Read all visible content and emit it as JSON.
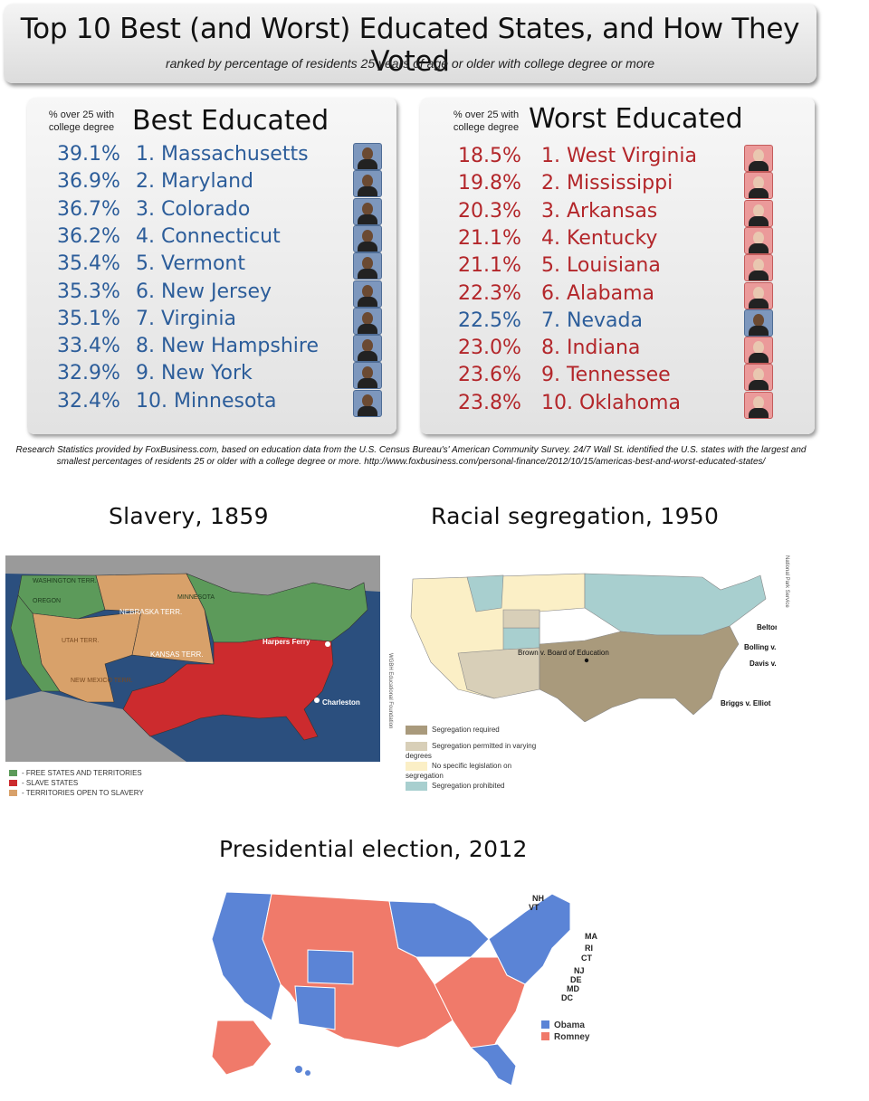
{
  "header": {
    "title": "Top 10 Best (and Worst) Educated States, and How They Voted",
    "subtitle": "ranked by percentage of residents 25 years of age or older with college degree or more"
  },
  "best": {
    "col_header_line1": "% over 25 with",
    "col_header_line2": "college degree",
    "heading": "Best Educated",
    "rows": [
      {
        "pct": "39.1%",
        "state": "1. Massachusetts",
        "vote": "obama"
      },
      {
        "pct": "36.9%",
        "state": "2. Maryland",
        "vote": "obama"
      },
      {
        "pct": "36.7%",
        "state": "3. Colorado",
        "vote": "obama"
      },
      {
        "pct": "36.2%",
        "state": "4. Connecticut",
        "vote": "obama"
      },
      {
        "pct": "35.4%",
        "state": "5. Vermont",
        "vote": "obama"
      },
      {
        "pct": "35.3%",
        "state": "6. New Jersey",
        "vote": "obama"
      },
      {
        "pct": "35.1%",
        "state": "7. Virginia",
        "vote": "obama"
      },
      {
        "pct": "33.4%",
        "state": "8. New Hampshire",
        "vote": "obama"
      },
      {
        "pct": "32.9%",
        "state": "9. New York",
        "vote": "obama"
      },
      {
        "pct": "32.4%",
        "state": "10. Minnesota",
        "vote": "obama"
      }
    ]
  },
  "worst": {
    "col_header_line1": "% over 25 with",
    "col_header_line2": "college degree",
    "heading": "Worst Educated",
    "rows": [
      {
        "pct": "18.5%",
        "state": "1. West Virginia",
        "vote": "romney"
      },
      {
        "pct": "19.8%",
        "state": "2. Mississippi",
        "vote": "romney"
      },
      {
        "pct": "20.3%",
        "state": "3. Arkansas",
        "vote": "romney"
      },
      {
        "pct": "21.1%",
        "state": "4. Kentucky",
        "vote": "romney"
      },
      {
        "pct": "21.1%",
        "state": "5. Louisiana",
        "vote": "romney"
      },
      {
        "pct": "22.3%",
        "state": "6. Alabama",
        "vote": "romney"
      },
      {
        "pct": "22.5%",
        "state": "7. Nevada",
        "vote": "obama"
      },
      {
        "pct": "23.0%",
        "state": "8. Indiana",
        "vote": "romney"
      },
      {
        "pct": "23.6%",
        "state": "9. Tennessee",
        "vote": "romney"
      },
      {
        "pct": "23.8%",
        "state": "10. Oklahoma",
        "vote": "romney"
      }
    ]
  },
  "source": {
    "line1": "Research Statistics provided by FoxBusiness.com, based on education data from the U.S. Census Bureau's' American Community Survey. 24/7 Wall St. identified the U.S. states with the largest and",
    "line2": "smallest percentages of residents 25 or older with a college degree or more. http://www.foxbusiness.com/personal-finance/2012/10/15/americas-best-and-worst-educated-states/"
  },
  "slavery_map": {
    "title": "Slavery, 1859",
    "labels": {
      "nebraska": "NEBRASKA TERR.",
      "kansas": "KANSAS TERR.",
      "utah": "UTAH TERR.",
      "new_mexico": "NEW MEXICO TERR.",
      "washington": "WASHINGTON TERR.",
      "oregon": "OREGON",
      "minnesota": "MINNESOTA",
      "harpers_ferry": "Harpers Ferry",
      "charleston": "Charleston",
      "credit": "WGBH Educational Foundation"
    },
    "legend": [
      {
        "label": "- FREE STATES AND TERRITORIES",
        "color": "#5c9a5a"
      },
      {
        "label": "- SLAVE STATES",
        "color": "#cc2b2e"
      },
      {
        "label": "- TERRITORIES OPEN TO SLAVERY",
        "color": "#d8a16a"
      }
    ]
  },
  "segregation_map": {
    "title": "Racial segregation, 1950",
    "labels": {
      "brown": "Brown v. Board of Education",
      "belton": "Belton (I Gebhart",
      "bolling": "Bolling v. S",
      "davis": "Davis v. C School Bo of Prince I County",
      "briggs": "Briggs v. Elliot",
      "credit": "National Park Service"
    },
    "legend": [
      {
        "label": "Segregation required",
        "color": "#a99a7c"
      },
      {
        "label": "Segregation permitted in varying degrees",
        "color": "#d8cfb8"
      },
      {
        "label": "No specific legislation on segregation",
        "color": "#fbefc6"
      },
      {
        "label": "Segregation prohibited",
        "color": "#a8cfcf"
      }
    ]
  },
  "election_map": {
    "title": "Presidential election, 2012",
    "state_labels": [
      "NH",
      "VT",
      "MA",
      "RI",
      "CT",
      "NJ",
      "DE",
      "MD",
      "DC"
    ],
    "legend": [
      {
        "label": "Obama",
        "color": "#5b84d6"
      },
      {
        "label": "Romney",
        "color": "#f07a6a"
      }
    ]
  }
}
